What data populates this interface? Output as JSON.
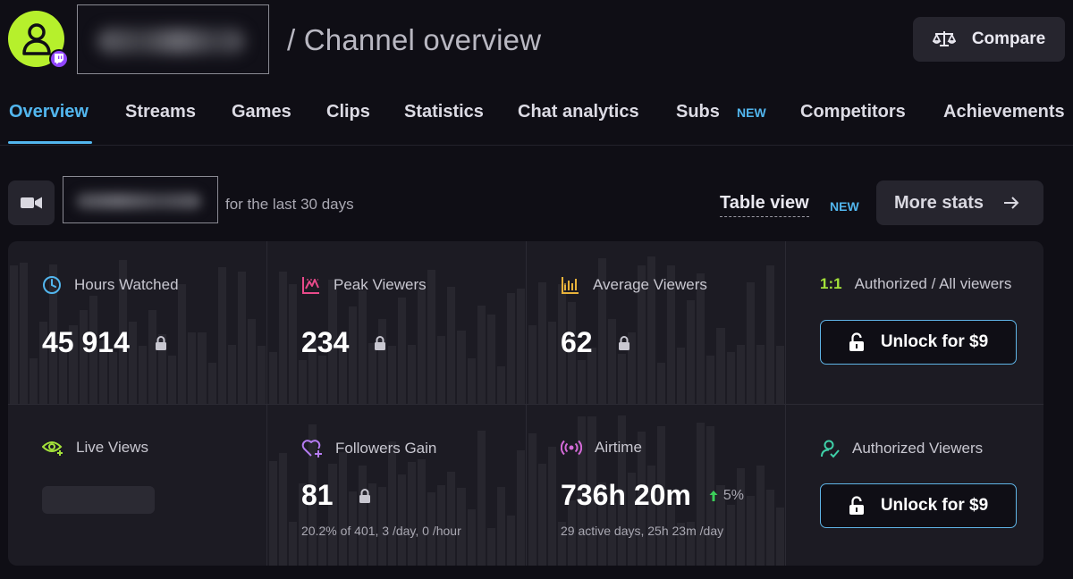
{
  "header": {
    "page_title": "/ Channel overview",
    "compare_label": "Compare"
  },
  "tabs": [
    {
      "label": "Overview",
      "active": true
    },
    {
      "label": "Streams"
    },
    {
      "label": "Games"
    },
    {
      "label": "Clips"
    },
    {
      "label": "Statistics"
    },
    {
      "label": "Chat analytics"
    },
    {
      "label": "Subs",
      "badge": "NEW"
    },
    {
      "label": "Competitors"
    },
    {
      "label": "Achievements"
    }
  ],
  "filters": {
    "period_label": "for the last 30 days",
    "table_view_label": "Table view",
    "table_view_badge": "NEW",
    "more_stats_label": "More stats"
  },
  "metrics": {
    "hours_watched": {
      "label": "Hours Watched",
      "value": "45 914",
      "locked": true
    },
    "peak_viewers": {
      "label": "Peak Viewers",
      "value": "234",
      "locked": true
    },
    "average_viewers": {
      "label": "Average Viewers",
      "value": "62",
      "locked": true
    },
    "authorized_all": {
      "tag": "1:1",
      "label": "Authorized / All viewers",
      "unlock_label": "Unlock for $9"
    },
    "live_views": {
      "label": "Live Views"
    },
    "followers_gain": {
      "label": "Followers Gain",
      "value": "81",
      "sub": "20.2% of 401, 3 /day, 0 /hour",
      "locked": true
    },
    "airtime": {
      "label": "Airtime",
      "value": "736h 20m",
      "trend": "5%",
      "sub": "29 active days, 25h 23m /day"
    },
    "authorized_viewers": {
      "label": "Authorized Viewers",
      "unlock_label": "Unlock for $9"
    }
  },
  "colors": {
    "accent_blue": "#52b6ee",
    "lime": "#b6f02c",
    "twitch_purple": "#9146ff",
    "trend_up": "#3ccf5a"
  }
}
